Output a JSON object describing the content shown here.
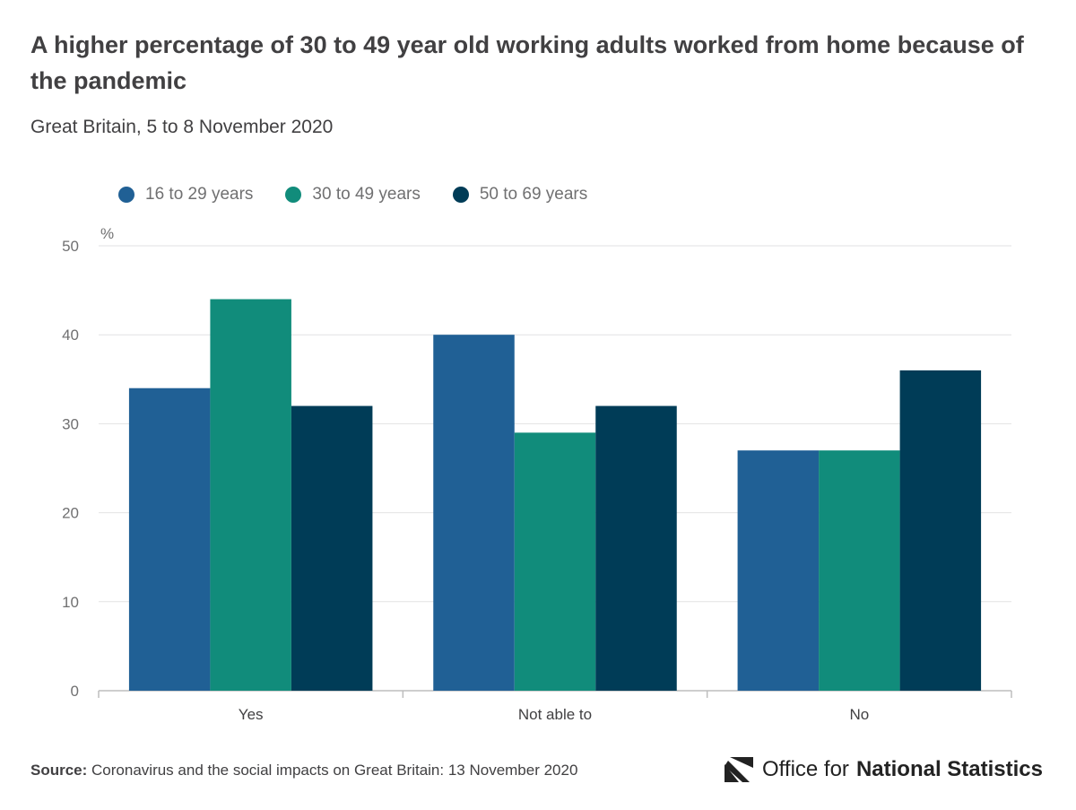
{
  "chart_data": {
    "type": "bar",
    "title": "A higher percentage of 30 to 49 year old working adults worked from home because of the pandemic",
    "subtitle": "Great Britain, 5 to 8 November 2020",
    "categories": [
      "Yes",
      "Not able to",
      "No"
    ],
    "series": [
      {
        "name": "16 to 29 years",
        "color": "#206095",
        "values": [
          34,
          40,
          27
        ]
      },
      {
        "name": "30 to 49 years",
        "color": "#118c7b",
        "values": [
          44,
          29,
          27
        ]
      },
      {
        "name": "50 to 69 years",
        "color": "#003c57",
        "values": [
          32,
          32,
          36
        ]
      }
    ],
    "ylabel": "%",
    "ylim": [
      0,
      50
    ],
    "yticks": [
      0,
      10,
      20,
      30,
      40,
      50
    ],
    "grid": true,
    "legend_position": "top-left"
  },
  "source": {
    "label": "Source:",
    "text": "Coronavirus and the social impacts on Great Britain: 13 November 2020"
  },
  "logo": {
    "prefix": "Office for",
    "bold": "National Statistics"
  }
}
